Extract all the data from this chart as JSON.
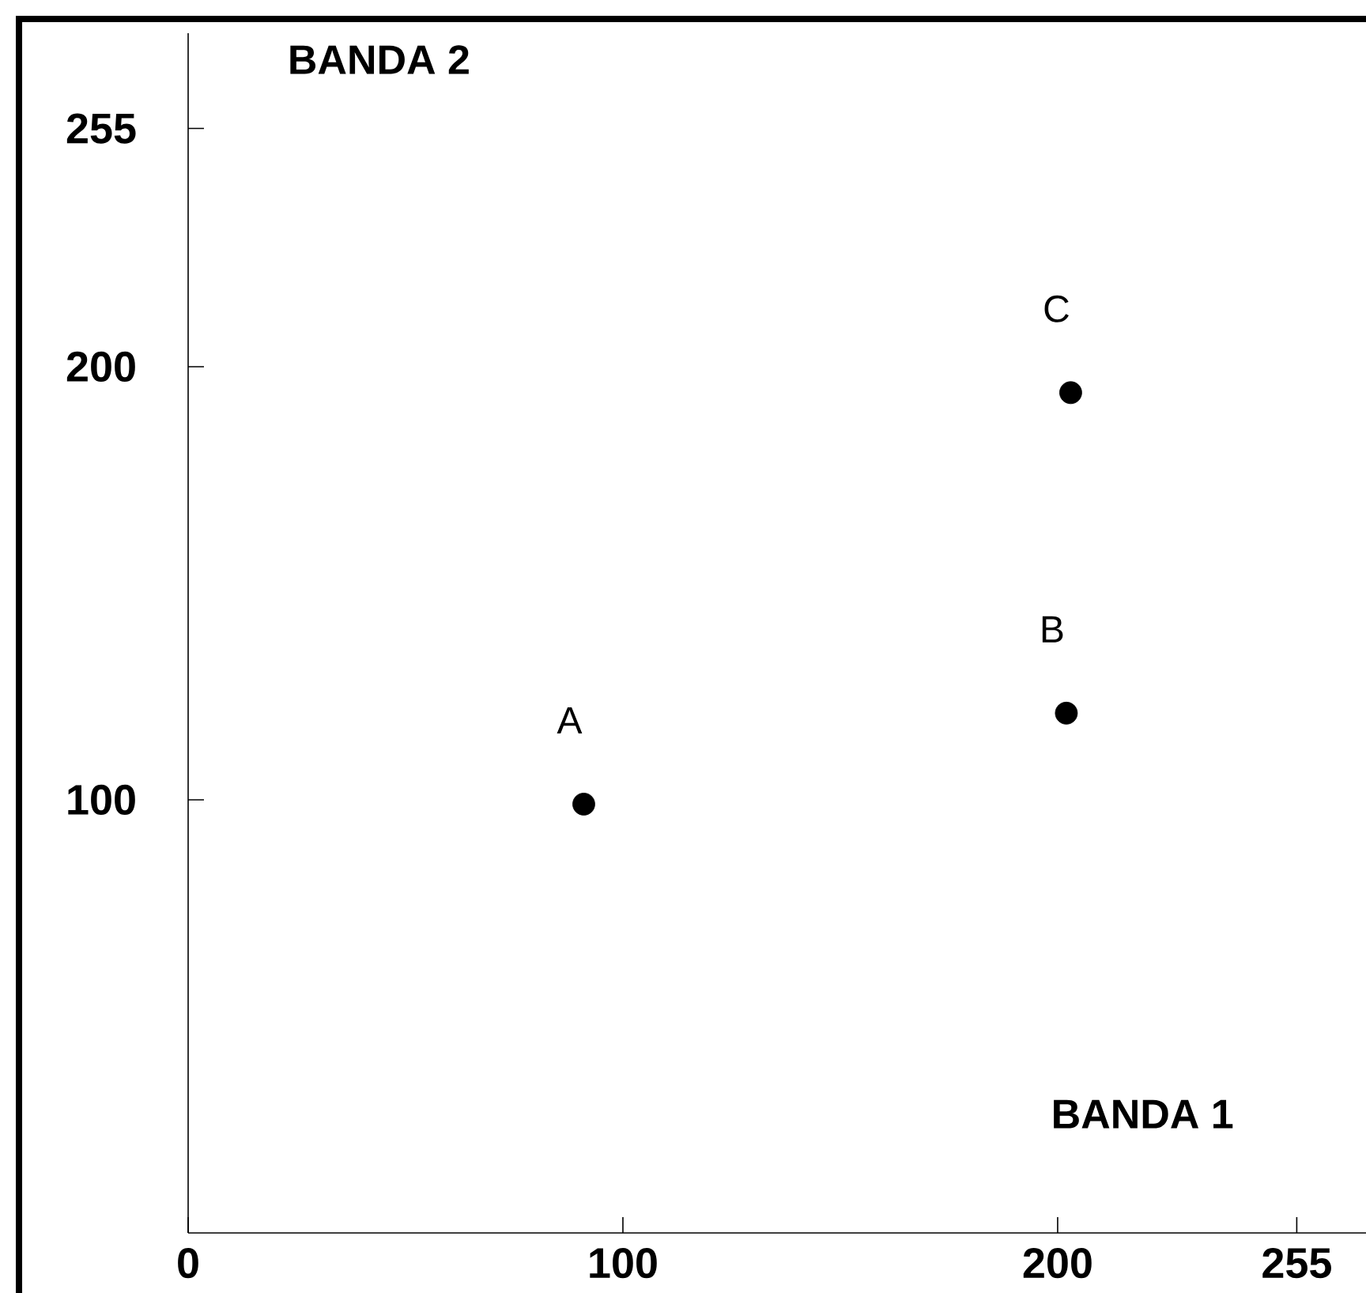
{
  "chart_data": {
    "type": "scatter",
    "xlabel": "BANDA 1",
    "ylabel": "BANDA 2",
    "x": [
      91,
      202,
      203
    ],
    "series": [
      {
        "color": "#000000",
        "values": [
          99,
          120,
          194
        ]
      }
    ],
    "marker": "circle",
    "xlim": [
      0,
      271
    ],
    "ylim": [
      0,
      277
    ],
    "xticks": [
      0,
      100,
      200,
      255
    ],
    "yticks": [
      100,
      200,
      255
    ],
    "annotations": [
      {
        "text": "A",
        "x": 91,
        "y": 99
      },
      {
        "text": "B",
        "x": 202,
        "y": 120
      },
      {
        "text": "C",
        "x": 203,
        "y": 194
      }
    ],
    "grid": false
  }
}
